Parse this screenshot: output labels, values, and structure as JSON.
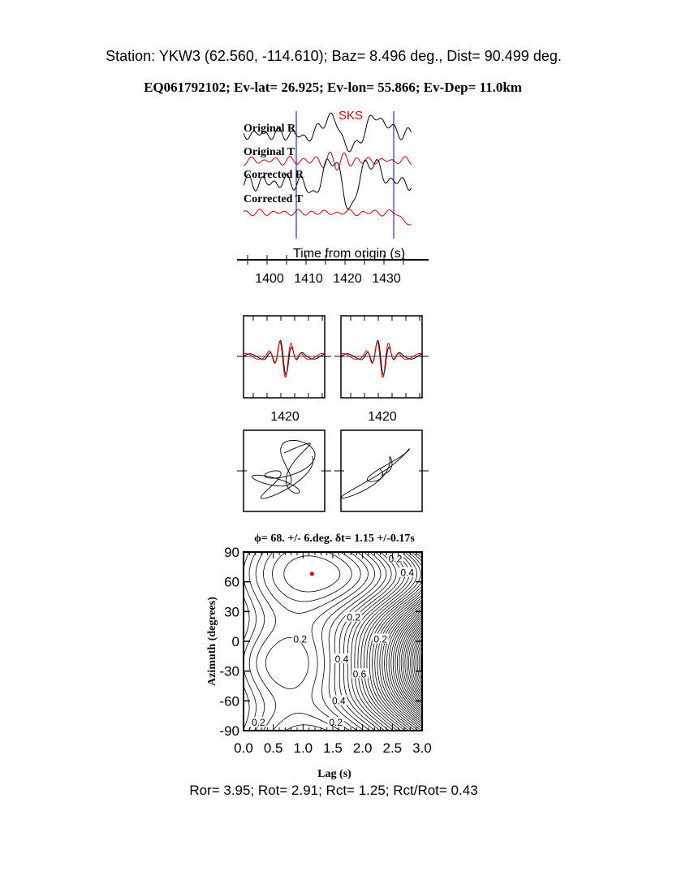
{
  "header": {
    "station_line": "Station: YKW3 (62.560, -114.610); Baz=    8.496 deg., Dist=   90.499 deg.",
    "event_line": "EQ061792102; Ev-lat=  26.925; Ev-lon=  55.866; Ev-Dep= 11.0km"
  },
  "colors": {
    "black": "#000000",
    "red": "#e00000",
    "blue": "#0000cc"
  },
  "chart_data": [
    {
      "type": "line",
      "panel": "waveforms",
      "phase_label": "SKS",
      "trace_labels": [
        "Original R",
        "Original T",
        "Corrected R",
        "Corrected T"
      ],
      "trace_colors": [
        "#000000",
        "#e00000",
        "#000000",
        "#e00000"
      ],
      "xlabel": "Time from origin (s)",
      "x_ticks": [
        1400,
        1410,
        1420,
        1430
      ],
      "xlim": [
        1393,
        1437
      ],
      "window": [
        1407.5,
        1432.5
      ]
    },
    {
      "type": "line",
      "panel": "waveform-comparison",
      "x_tick_label_left": "1420",
      "x_tick_label_right": "1420"
    },
    {
      "type": "line",
      "panel": "particle-motion"
    },
    {
      "type": "heatmap",
      "panel": "energy-contour",
      "title": "ϕ= 68. +/- 6.deg. δt= 1.15 +/-0.17s",
      "xlabel": "Lag (s)",
      "ylabel": "Azimuth (degrees)",
      "xlim": [
        0,
        3
      ],
      "ylim": [
        -90,
        90
      ],
      "x_ticks": [
        "0.0",
        "0.5",
        "1.0",
        "1.5",
        "2.0",
        "2.5",
        "3.0"
      ],
      "y_ticks": [
        "90",
        "60",
        "30",
        "0",
        "-30",
        "-60",
        "-90"
      ],
      "best_fit": {
        "lag": 1.15,
        "azimuth": 68
      },
      "contour_labels": [
        "0.2",
        "0.4",
        "0.2",
        "0.2",
        "0.2",
        "0.4",
        "0.6",
        "0.4",
        "0.2",
        "0.2"
      ]
    }
  ],
  "footer": {
    "ratios": "Ror= 3.95; Rot= 2.91; Rct= 1.25; Rct/Rot= 0.43"
  }
}
